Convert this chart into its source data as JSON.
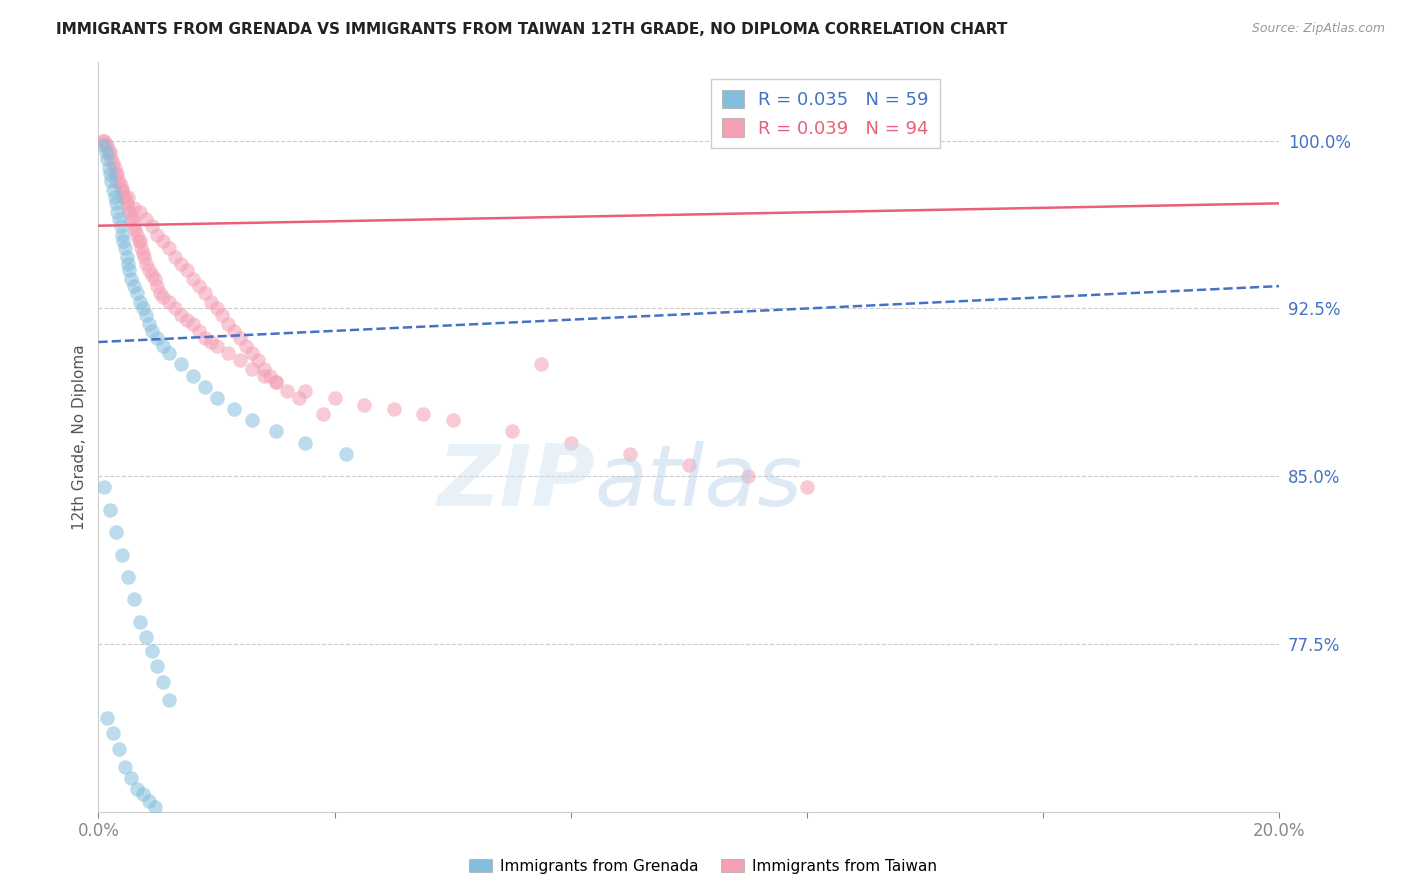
{
  "title": "IMMIGRANTS FROM GRENADA VS IMMIGRANTS FROM TAIWAN 12TH GRADE, NO DIPLOMA CORRELATION CHART",
  "source": "Source: ZipAtlas.com",
  "ylabel": "12th Grade, No Diploma",
  "legend_label_grenada": "Immigrants from Grenada",
  "legend_label_taiwan": "Immigrants from Taiwan",
  "grenada_color": "#85bedd",
  "taiwan_color": "#f4a0b5",
  "grenada_line_color": "#4472c4",
  "taiwan_line_color": "#e8607a",
  "grenada_R": 0.035,
  "grenada_N": 59,
  "taiwan_R": 0.039,
  "taiwan_N": 94,
  "xlim": [
    0.0,
    20.0
  ],
  "ylim": [
    70.0,
    103.5
  ],
  "yticks": [
    77.5,
    85.0,
    92.5,
    100.0
  ],
  "ytick_labels": [
    "77.5%",
    "85.0%",
    "92.5%",
    "100.0%"
  ],
  "taiwan_line_y0": 96.2,
  "taiwan_line_y1": 97.2,
  "grenada_line_y0": 91.0,
  "grenada_line_y1": 93.5,
  "grenada_x": [
    0.08,
    0.12,
    0.15,
    0.18,
    0.2,
    0.22,
    0.25,
    0.28,
    0.3,
    0.32,
    0.35,
    0.38,
    0.4,
    0.42,
    0.45,
    0.48,
    0.5,
    0.52,
    0.55,
    0.6,
    0.65,
    0.7,
    0.75,
    0.8,
    0.85,
    0.9,
    1.0,
    1.1,
    1.2,
    1.4,
    1.6,
    1.8,
    2.0,
    2.3,
    2.6,
    3.0,
    3.5,
    4.2,
    0.1,
    0.2,
    0.3,
    0.4,
    0.5,
    0.6,
    0.7,
    0.8,
    0.9,
    1.0,
    1.1,
    1.2,
    0.15,
    0.25,
    0.35,
    0.45,
    0.55,
    0.65,
    0.75,
    0.85,
    0.95
  ],
  "grenada_y": [
    99.8,
    99.5,
    99.2,
    98.8,
    98.5,
    98.2,
    97.8,
    97.5,
    97.2,
    96.8,
    96.5,
    96.2,
    95.8,
    95.5,
    95.2,
    94.8,
    94.5,
    94.2,
    93.8,
    93.5,
    93.2,
    92.8,
    92.5,
    92.2,
    91.8,
    91.5,
    91.2,
    90.8,
    90.5,
    90.0,
    89.5,
    89.0,
    88.5,
    88.0,
    87.5,
    87.0,
    86.5,
    86.0,
    84.5,
    83.5,
    82.5,
    81.5,
    80.5,
    79.5,
    78.5,
    77.8,
    77.2,
    76.5,
    75.8,
    75.0,
    74.2,
    73.5,
    72.8,
    72.0,
    71.5,
    71.0,
    70.8,
    70.5,
    70.2
  ],
  "taiwan_x": [
    0.08,
    0.1,
    0.12,
    0.15,
    0.18,
    0.2,
    0.22,
    0.25,
    0.28,
    0.3,
    0.32,
    0.35,
    0.38,
    0.4,
    0.42,
    0.45,
    0.48,
    0.5,
    0.52,
    0.55,
    0.58,
    0.6,
    0.62,
    0.65,
    0.68,
    0.7,
    0.72,
    0.75,
    0.78,
    0.8,
    0.85,
    0.9,
    0.95,
    1.0,
    1.05,
    1.1,
    1.2,
    1.3,
    1.4,
    1.5,
    1.6,
    1.7,
    1.8,
    1.9,
    2.0,
    2.2,
    2.4,
    2.6,
    2.8,
    3.0,
    3.5,
    4.0,
    4.5,
    5.0,
    5.5,
    6.0,
    7.0,
    8.0,
    9.0,
    10.0,
    11.0,
    12.0,
    7.5,
    0.3,
    0.4,
    0.5,
    0.6,
    0.7,
    0.8,
    0.9,
    1.0,
    1.1,
    1.2,
    1.3,
    1.4,
    1.5,
    1.6,
    1.7,
    1.8,
    1.9,
    2.0,
    2.1,
    2.2,
    2.3,
    2.4,
    2.5,
    2.6,
    2.7,
    2.8,
    2.9,
    3.0,
    3.2,
    3.4,
    3.8
  ],
  "taiwan_y": [
    100.0,
    100.0,
    99.8,
    99.8,
    99.5,
    99.5,
    99.2,
    99.0,
    98.8,
    98.5,
    98.5,
    98.2,
    98.0,
    97.8,
    97.5,
    97.5,
    97.2,
    97.0,
    96.8,
    96.5,
    96.5,
    96.2,
    96.0,
    95.8,
    95.5,
    95.5,
    95.2,
    95.0,
    94.8,
    94.5,
    94.2,
    94.0,
    93.8,
    93.5,
    93.2,
    93.0,
    92.8,
    92.5,
    92.2,
    92.0,
    91.8,
    91.5,
    91.2,
    91.0,
    90.8,
    90.5,
    90.2,
    89.8,
    89.5,
    89.2,
    88.8,
    88.5,
    88.2,
    88.0,
    87.8,
    87.5,
    87.0,
    86.5,
    86.0,
    85.5,
    85.0,
    84.5,
    90.0,
    98.2,
    97.8,
    97.5,
    97.0,
    96.8,
    96.5,
    96.2,
    95.8,
    95.5,
    95.2,
    94.8,
    94.5,
    94.2,
    93.8,
    93.5,
    93.2,
    92.8,
    92.5,
    92.2,
    91.8,
    91.5,
    91.2,
    90.8,
    90.5,
    90.2,
    89.8,
    89.5,
    89.2,
    88.8,
    88.5,
    87.8
  ]
}
